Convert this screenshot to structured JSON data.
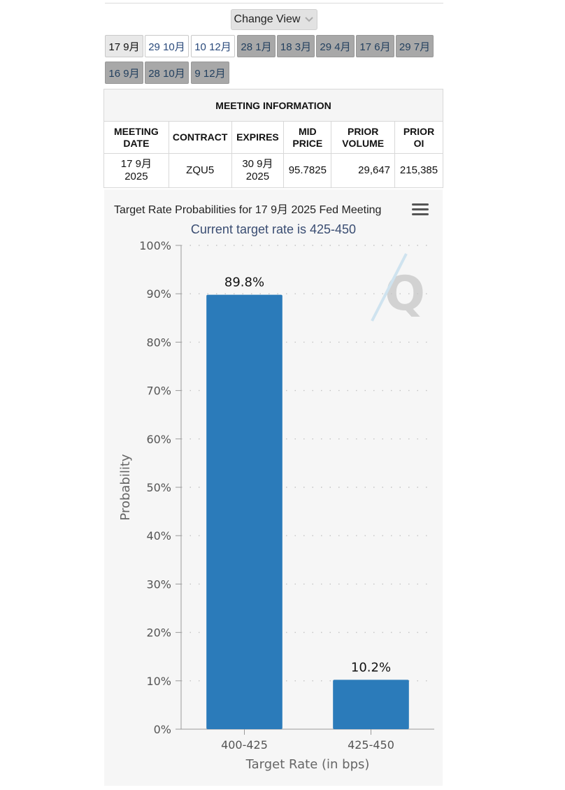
{
  "toolbar": {
    "change_view_label": "Change View"
  },
  "meeting_tabs": [
    {
      "label": "17 9月",
      "style": "active"
    },
    {
      "label": "29 10月",
      "style": "light"
    },
    {
      "label": "10 12月",
      "style": "light"
    },
    {
      "label": "28 1月",
      "style": "dark"
    },
    {
      "label": "18 3月",
      "style": "dark"
    },
    {
      "label": "29 4月",
      "style": "dark"
    },
    {
      "label": "17 6月",
      "style": "dark"
    },
    {
      "label": "29 7月",
      "style": "dark"
    },
    {
      "label": "16 9月",
      "style": "dark"
    },
    {
      "label": "28 10月",
      "style": "dark"
    },
    {
      "label": "9 12月",
      "style": "dark"
    }
  ],
  "meeting_info": {
    "title": "MEETING INFORMATION",
    "headers": [
      "MEETING DATE",
      "CONTRACT",
      "EXPIRES",
      "MID PRICE",
      "PRIOR VOLUME",
      "PRIOR OI"
    ],
    "row": [
      "17 9月 2025",
      "ZQU5",
      "30 9月 2025",
      "95.7825",
      "29,647",
      "215,385"
    ]
  },
  "chart_data": {
    "type": "bar",
    "title": "Target Rate Probabilities for 17 9月 2025 Fed Meeting",
    "subtitle": "Current target rate is 425-450",
    "categories": [
      "400-425",
      "425-450"
    ],
    "values": [
      89.8,
      10.2
    ],
    "data_labels": [
      "89.8%",
      "10.2%"
    ],
    "xlabel": "Target Rate (in bps)",
    "ylabel": "Probability",
    "ylim": [
      0,
      100
    ],
    "yticks": [
      "0%",
      "10%",
      "20%",
      "30%",
      "40%",
      "50%",
      "60%",
      "70%",
      "80%",
      "90%",
      "100%"
    ],
    "grid": true,
    "bar_color": "#2b7bba",
    "watermark": "Q"
  }
}
